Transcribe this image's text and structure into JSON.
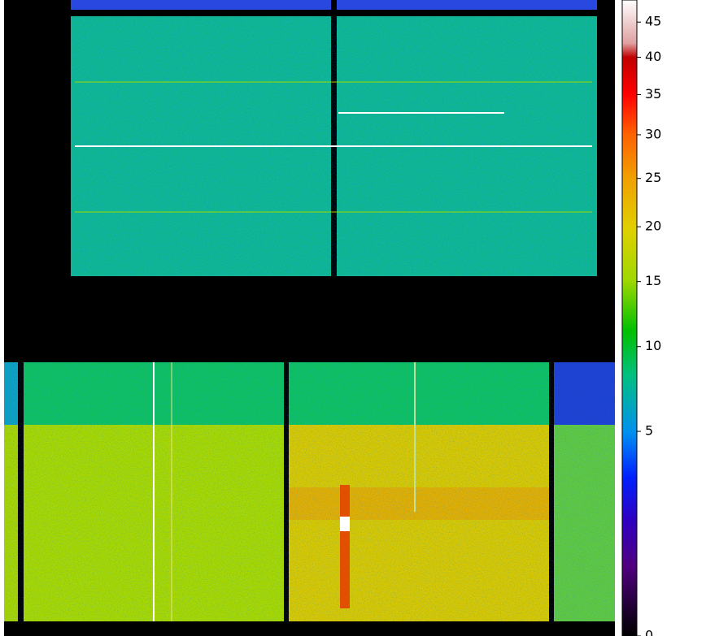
{
  "colorbar": {
    "scale": "sqrt",
    "lim": [
      0,
      48.3
    ],
    "ticks": [
      0,
      5,
      10,
      15,
      20,
      25,
      30,
      35,
      40,
      45
    ]
  }
}
